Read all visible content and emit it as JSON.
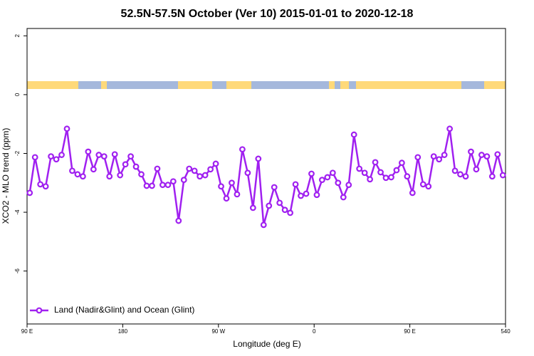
{
  "chart_data": {
    "type": "line",
    "title": "52.5N-57.5N October (Ver 10)   2015-01-01 to 2020-12-18",
    "x_label": "Longitude (deg E)",
    "y_label": "XCO2 - MLO trend (ppm)",
    "x": [
      92.5,
      97.5,
      102.5,
      107.5,
      112.5,
      117.5,
      122.5,
      127.5,
      132.5,
      137.5,
      142.5,
      147.5,
      152.5,
      157.5,
      162.5,
      167.5,
      172.5,
      177.5,
      182.5,
      187.5,
      192.5,
      197.5,
      202.5,
      207.5,
      212.5,
      217.5,
      222.5,
      227.5,
      232.5,
      237.5,
      242.5,
      247.5,
      252.5,
      257.5,
      262.5,
      267.5,
      272.5,
      277.5,
      282.5,
      287.5,
      292.5,
      297.5,
      302.5,
      307.5,
      312.5,
      317.5,
      322.5,
      327.5,
      332.5,
      337.5,
      342.5,
      347.5,
      352.5,
      357.5,
      362.5,
      367.5,
      372.5,
      377.5,
      382.5,
      387.5,
      392.5,
      397.5,
      402.5,
      407.5,
      412.5,
      417.5,
      422.5,
      427.5,
      432.5,
      437.5,
      442.5,
      447.5,
      452.5,
      457.5,
      462.5,
      467.5,
      472.5,
      477.5,
      482.5,
      487.5,
      492.5,
      497.5,
      502.5,
      507.5,
      512.5,
      517.5,
      522.5,
      527.5,
      532.5,
      537.5
    ],
    "series": [
      {
        "name": "Land (Nadir&Glint) and Ocean (Glint)",
        "color": "#a020f0",
        "values": [
          -3.34,
          -2.13,
          -3.05,
          -3.12,
          -2.1,
          -2.2,
          -2.05,
          -1.16,
          -2.59,
          -2.71,
          -2.78,
          -1.94,
          -2.54,
          -2.05,
          -2.1,
          -2.78,
          -2.03,
          -2.74,
          -2.37,
          -2.1,
          -2.45,
          -2.71,
          -3.1,
          -3.1,
          -2.52,
          -3.07,
          -3.07,
          -2.95,
          -4.29,
          -2.9,
          -2.52,
          -2.59,
          -2.78,
          -2.74,
          -2.54,
          -2.35,
          -3.12,
          -3.53,
          -3.0,
          -3.39,
          -1.86,
          -2.66,
          -3.85,
          -2.18,
          -4.43,
          -3.78,
          -3.15,
          -3.68,
          -3.92,
          -4.02,
          -3.05,
          -3.44,
          -3.37,
          -2.69,
          -3.41,
          -2.9,
          -2.81,
          -2.66,
          -3.0,
          -3.49,
          -3.07,
          -1.36,
          -2.52,
          -2.66,
          -2.88,
          -2.3,
          -2.64,
          -2.83,
          -2.81,
          -2.57,
          -2.32,
          -2.78,
          -3.34,
          -2.13,
          -3.05,
          -3.12,
          -2.1,
          -2.2,
          -2.05,
          -1.16,
          -2.59,
          -2.71,
          -2.78,
          -1.94,
          -2.54,
          -2.05,
          -2.1,
          -2.78,
          -2.03,
          -2.74
        ]
      }
    ],
    "xlim": [
      90,
      540
    ],
    "xticks": [
      {
        "value": 90,
        "label": "90 E"
      },
      180,
      {
        "value": 270,
        "label": "90 W"
      },
      {
        "value": 360,
        "label": "0"
      },
      {
        "value": 450,
        "label": "90 E"
      },
      540
    ],
    "ylim": [
      -7.8,
      2.25
    ],
    "yticks": [
      2,
      0,
      -2,
      -4,
      -6
    ],
    "legend": "bottom-left"
  }
}
